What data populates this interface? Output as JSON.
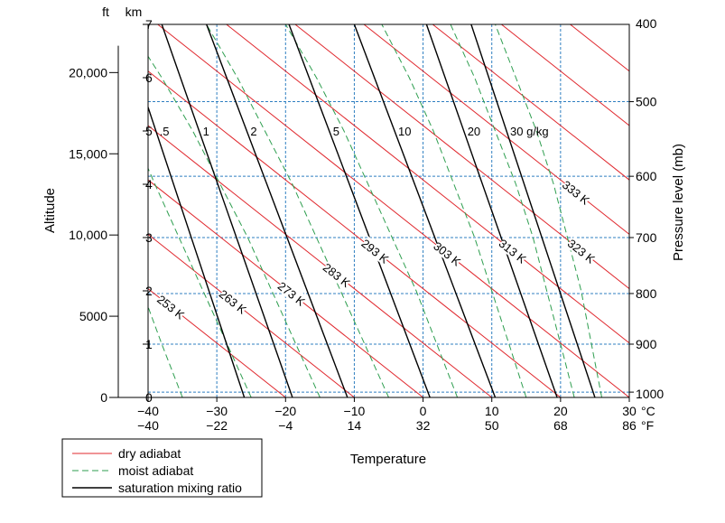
{
  "chart_data": {
    "type": "line",
    "title": "",
    "xlabel": "Temperature",
    "ylabel_left": "Altitude",
    "ylabel_right": "Pressure level (mb)",
    "x_unit_c": "°C",
    "x_unit_f": "°F",
    "alt_unit_ft": "ft",
    "alt_unit_km": "km",
    "xlim_c": [
      -40,
      30
    ],
    "ylim_km": [
      0,
      7
    ],
    "grid": "dashed blue at temperature ticks and pressure levels",
    "x_ticks": [
      {
        "c": "−40",
        "f": "−40",
        "v": -40
      },
      {
        "c": "−30",
        "f": "−22",
        "v": -30
      },
      {
        "c": "−20",
        "f": "−4",
        "v": -20
      },
      {
        "c": "−10",
        "f": "14",
        "v": -10
      },
      {
        "c": "0",
        "f": "32",
        "v": 0
      },
      {
        "c": "10",
        "f": "50",
        "v": 10
      },
      {
        "c": "20",
        "f": "68",
        "v": 20
      },
      {
        "c": "30",
        "f": "86",
        "v": 30
      }
    ],
    "km_ticks": [
      "0",
      "1",
      "2",
      "3",
      "4",
      "5",
      "6",
      "7"
    ],
    "ft_ticks": [
      {
        "label": "0",
        "km": 0
      },
      {
        "label": "5000",
        "km": 1.524
      },
      {
        "label": "10,000",
        "km": 3.048
      },
      {
        "label": "15,000",
        "km": 4.572
      },
      {
        "label": "20,000",
        "km": 6.096
      }
    ],
    "pressure_levels": [
      {
        "label": "400",
        "km": 7.2
      },
      {
        "label": "500",
        "km": 5.55
      },
      {
        "label": "600",
        "km": 4.15
      },
      {
        "label": "700",
        "km": 3.0
      },
      {
        "label": "800",
        "km": 1.95
      },
      {
        "label": "900",
        "km": 1.0
      },
      {
        "label": "1000",
        "km": 0.1
      }
    ],
    "legend": [
      {
        "name": "dry adiabat",
        "color": "#e0282e",
        "style": "solid"
      },
      {
        "name": "moist adiabat",
        "color": "#2e9e4f",
        "style": "dashed"
      },
      {
        "name": "saturation mixing ratio",
        "color": "#000000",
        "style": "solid"
      }
    ],
    "dry_adiabats": [
      {
        "label": "253 K",
        "x0": -20,
        "show": true
      },
      {
        "label": "263 K",
        "x0": -10,
        "show": true
      },
      {
        "label": "273 K",
        "x0": 0,
        "show": true
      },
      {
        "label": "283 K",
        "x0": 10,
        "show": true
      },
      {
        "label": "293 K",
        "x0": 20,
        "show": true
      },
      {
        "label": "303 K",
        "x0": 30,
        "show": true
      },
      {
        "label": "313 K",
        "x0": 40,
        "show": true
      },
      {
        "label": "323 K",
        "x0": 50,
        "show": true
      },
      {
        "label": "333 K",
        "x0": 60,
        "show": true
      },
      {
        "label": "",
        "x0": 70,
        "show": false
      },
      {
        "label": "",
        "x0": 80,
        "show": false
      },
      {
        "label": "",
        "x0": 90,
        "show": false
      }
    ],
    "moist_adiabats": [
      {
        "x0": -35,
        "pts": [
          [
            -35,
            0
          ],
          [
            -38,
            1
          ],
          [
            -40,
            1.7
          ]
        ]
      },
      {
        "x0": -25,
        "pts": [
          [
            -25,
            0
          ],
          [
            -28.5,
            1
          ],
          [
            -32,
            2
          ],
          [
            -35.5,
            3
          ],
          [
            -39,
            4
          ],
          [
            -40,
            4.3
          ]
        ]
      },
      {
        "x0": -15,
        "pts": [
          [
            -15,
            0
          ],
          [
            -18.5,
            1
          ],
          [
            -22,
            2
          ],
          [
            -25.5,
            3
          ],
          [
            -29.5,
            4
          ],
          [
            -33.5,
            5
          ],
          [
            -38,
            6
          ],
          [
            -40,
            6.4
          ]
        ]
      },
      {
        "x0": -5,
        "pts": [
          [
            -5,
            0
          ],
          [
            -8.5,
            1
          ],
          [
            -12,
            2
          ],
          [
            -15.5,
            3
          ],
          [
            -19,
            4
          ],
          [
            -23,
            5
          ],
          [
            -27,
            6
          ],
          [
            -31.5,
            7
          ]
        ]
      },
      {
        "x0": 5,
        "pts": [
          [
            5,
            0
          ],
          [
            2,
            1
          ],
          [
            -1,
            2
          ],
          [
            -4.5,
            3
          ],
          [
            -8,
            4
          ],
          [
            -11.5,
            5
          ],
          [
            -15.5,
            6
          ],
          [
            -20,
            7
          ]
        ]
      },
      {
        "x0": 15,
        "pts": [
          [
            15,
            0
          ],
          [
            12.5,
            1
          ],
          [
            10,
            2
          ],
          [
            7.5,
            3
          ],
          [
            4.5,
            4
          ],
          [
            1.5,
            5
          ],
          [
            -2,
            6
          ],
          [
            -6,
            7
          ]
        ]
      },
      {
        "x0": 22,
        "pts": [
          [
            22,
            0
          ],
          [
            20,
            1
          ],
          [
            18,
            2
          ],
          [
            16,
            3
          ],
          [
            13.5,
            4
          ],
          [
            10.5,
            5
          ],
          [
            7.5,
            6
          ],
          [
            4,
            7
          ]
        ]
      },
      {
        "x0": 26,
        "pts": [
          [
            26,
            0
          ],
          [
            24.5,
            1
          ],
          [
            23,
            2
          ],
          [
            21,
            3
          ],
          [
            19,
            4
          ],
          [
            16.5,
            5
          ],
          [
            13.5,
            6
          ],
          [
            10.5,
            7
          ]
        ]
      }
    ],
    "mixing_ratio_lines": [
      {
        "label": ".5",
        "b": -26,
        "t": -44
      },
      {
        "label": "1",
        "b": -19,
        "t": -38
      },
      {
        "label": "2",
        "b": -11,
        "t": -31.5
      },
      {
        "label": "5",
        "b": 1,
        "t": -19.5
      },
      {
        "label": "10",
        "b": 10.5,
        "t": -10
      },
      {
        "label": "20",
        "b": 19.5,
        "t": 0.5
      },
      {
        "label": "30 g/kg",
        "b": 25,
        "t": 7
      }
    ]
  }
}
